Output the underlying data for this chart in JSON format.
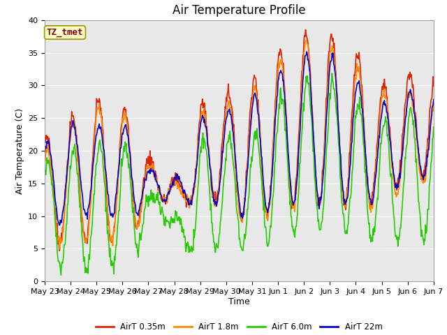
{
  "title": "Air Temperature Profile",
  "xlabel": "Time",
  "ylabel": "Air Temperature (C)",
  "ylim": [
    0,
    40
  ],
  "background_color": "#e8e8e8",
  "annotation_text": "TZ_tmet",
  "annotation_bg": "#ffffcc",
  "annotation_border": "#999900",
  "annotation_text_color": "#880000",
  "series_colors": {
    "AirT 0.35m": "#dd2200",
    "AirT 1.8m": "#ff8800",
    "AirT 6.0m": "#22cc00",
    "AirT 22m": "#0000cc"
  },
  "series_lw": 1.2,
  "x_tick_labels": [
    "May 23",
    "May 24",
    "May 25",
    "May 26",
    "May 27",
    "May 28",
    "May 29",
    "May 30",
    "May 31",
    "Jun 1",
    "Jun 2",
    "Jun 3",
    "Jun 4",
    "Jun 5",
    "Jun 6",
    "Jun 7"
  ],
  "title_fontsize": 12,
  "axis_label_fontsize": 9,
  "tick_fontsize": 8
}
